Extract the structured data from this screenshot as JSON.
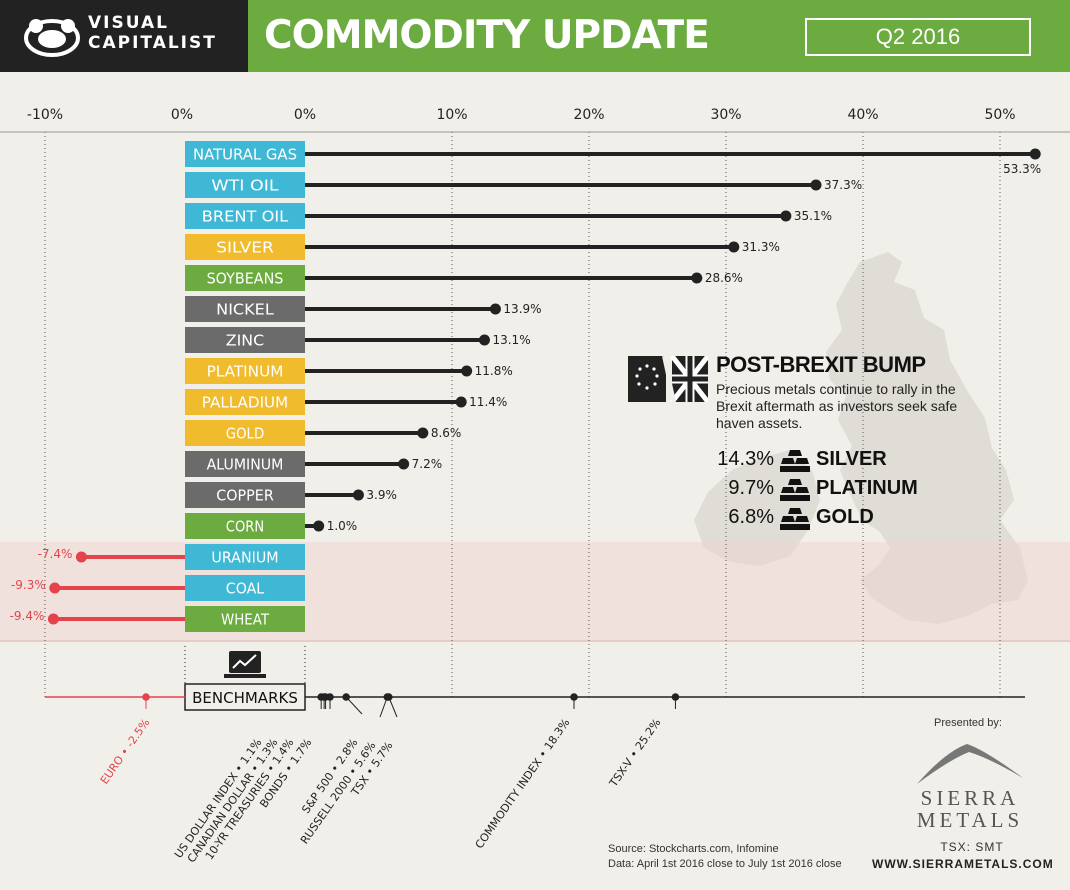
{
  "header": {
    "brand_line1": "VISUAL",
    "brand_line2": "CAPITALIST",
    "title": "COMMODITY UPDATE",
    "period": "Q2 2016"
  },
  "colors": {
    "energy": "#3fb8d6",
    "precious": "#f0bb2d",
    "agriculture": "#6bab3f",
    "base_metal": "#6b6b6b",
    "positive_line": "#222222",
    "negative_line": "#e5434c",
    "header_green": "#6bab3f"
  },
  "chart_data": {
    "type": "bar",
    "subtype": "lollipop",
    "x_ticks": [
      "-10%",
      "0%",
      "0%",
      "10%",
      "20%",
      "30%",
      "40%",
      "50%"
    ],
    "xlim": [
      -10,
      53.3
    ],
    "grid": true,
    "categories": [
      "NATURAL GAS",
      "WTI OIL",
      "BRENT OIL",
      "SILVER",
      "SOYBEANS",
      "NICKEL",
      "ZINC",
      "PLATINUM",
      "PALLADIUM",
      "GOLD",
      "ALUMINUM",
      "COPPER",
      "CORN",
      "URANIUM",
      "COAL",
      "WHEAT"
    ],
    "values": [
      53.3,
      37.3,
      35.1,
      31.3,
      28.6,
      13.9,
      13.1,
      11.8,
      11.4,
      8.6,
      7.2,
      3.9,
      1.0,
      -7.4,
      -9.3,
      -9.4
    ],
    "value_labels": [
      "53.3%",
      "37.3%",
      "35.1%",
      "31.3%",
      "28.6%",
      "13.9%",
      "13.1%",
      "11.8%",
      "11.4%",
      "8.6%",
      "7.2%",
      "3.9%",
      "1.0%",
      "-7.4%",
      "-9.3%",
      "-9.4%"
    ],
    "category_groups": [
      "energy",
      "energy",
      "energy",
      "precious",
      "agriculture",
      "base_metal",
      "base_metal",
      "precious",
      "precious",
      "precious",
      "base_metal",
      "base_metal",
      "agriculture",
      "energy",
      "energy",
      "agriculture"
    ],
    "benchmarks": {
      "label": "BENCHMARKS",
      "items": [
        {
          "label": "EURO • -2.5%",
          "value": -2.5
        },
        {
          "label": "US DOLLAR INDEX • 1.1%",
          "value": 1.1
        },
        {
          "label": "CANADIAN DOLLAR • 1.3%",
          "value": 1.3
        },
        {
          "label": "10-YR TREASURIES • 1.4%",
          "value": 1.4
        },
        {
          "label": "BONDS • 1.7%",
          "value": 1.7
        },
        {
          "label": "S&P 500 • 2.8%",
          "value": 2.8
        },
        {
          "label": "RUSSELL 2000 • 5.6%",
          "value": 5.6
        },
        {
          "label": "TSX • 5.7%",
          "value": 5.7
        },
        {
          "label": "COMMODITY INDEX • 18.3%",
          "value": 18.3
        },
        {
          "label": "TSX-V • 25.2%",
          "value": 25.2
        }
      ]
    }
  },
  "callout": {
    "title": "POST-BREXIT BUMP",
    "body": "Precious metals continue to rally in the Brexit aftermath as investors seek safe haven assets.",
    "items": [
      {
        "pct": "14.3%",
        "name": "SILVER"
      },
      {
        "pct": "9.7%",
        "name": "PLATINUM"
      },
      {
        "pct": "6.8%",
        "name": "GOLD"
      }
    ]
  },
  "footer": {
    "source_line1": "Source: Stockcharts.com, Infomine",
    "source_line2": "Data: April 1st 2016  close to July 1st 2016 close",
    "presented_by": "Presented by:",
    "sponsor_line1": "SIERRA",
    "sponsor_line2": "METALS",
    "ticker": "TSX: SMT",
    "website": "WWW.SIERRAMETALS.COM"
  }
}
